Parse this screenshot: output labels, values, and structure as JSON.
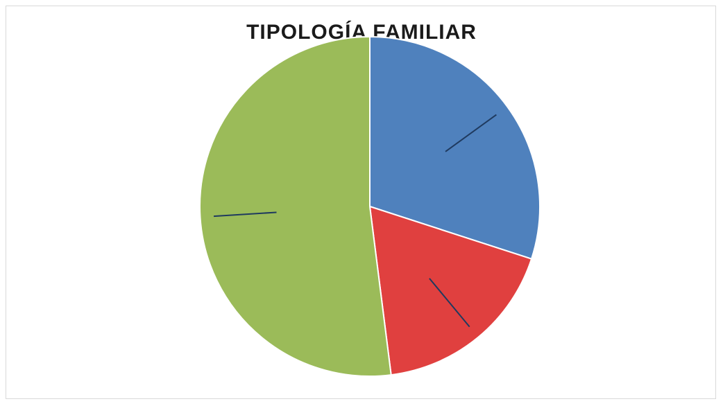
{
  "chart_data": {
    "type": "pie",
    "title": "TIPOLOGÍA FAMILIAR",
    "slices": [
      {
        "label": "",
        "value": 30,
        "color": "#4f81bd"
      },
      {
        "label": "",
        "value": 18,
        "color": "#e0403f"
      },
      {
        "label": "",
        "value": 52,
        "color": "#9bbb59"
      }
    ],
    "start_angle_deg": 0,
    "direction": "clockwise",
    "legend": "none"
  }
}
